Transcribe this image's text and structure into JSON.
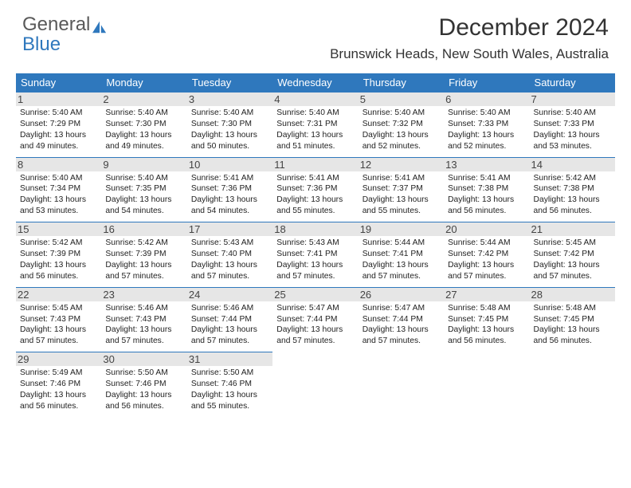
{
  "brand": {
    "part1": "General",
    "part2": "Blue"
  },
  "title": "December 2024",
  "location": "Brunswick Heads, New South Wales, Australia",
  "colors": {
    "header_bg": "#2f78bd",
    "header_text": "#ffffff",
    "daynum_bg": "#e6e6e6",
    "row_border": "#2f78bd",
    "page_bg": "#ffffff",
    "text": "#222222",
    "logo_gray": "#595959",
    "logo_blue": "#2f78bd"
  },
  "typography": {
    "title_fontsize": 30,
    "location_fontsize": 17,
    "dayhead_fontsize": 13,
    "daynum_fontsize": 13,
    "cell_fontsize": 10.3,
    "font_family": "Arial"
  },
  "layout": {
    "columns": 7,
    "rows_of_weeks": 5,
    "cell_lines": 4
  },
  "day_headers": [
    "Sunday",
    "Monday",
    "Tuesday",
    "Wednesday",
    "Thursday",
    "Friday",
    "Saturday"
  ],
  "weeks": [
    [
      {
        "num": "1",
        "l1": "Sunrise: 5:40 AM",
        "l2": "Sunset: 7:29 PM",
        "l3": "Daylight: 13 hours",
        "l4": "and 49 minutes."
      },
      {
        "num": "2",
        "l1": "Sunrise: 5:40 AM",
        "l2": "Sunset: 7:30 PM",
        "l3": "Daylight: 13 hours",
        "l4": "and 49 minutes."
      },
      {
        "num": "3",
        "l1": "Sunrise: 5:40 AM",
        "l2": "Sunset: 7:30 PM",
        "l3": "Daylight: 13 hours",
        "l4": "and 50 minutes."
      },
      {
        "num": "4",
        "l1": "Sunrise: 5:40 AM",
        "l2": "Sunset: 7:31 PM",
        "l3": "Daylight: 13 hours",
        "l4": "and 51 minutes."
      },
      {
        "num": "5",
        "l1": "Sunrise: 5:40 AM",
        "l2": "Sunset: 7:32 PM",
        "l3": "Daylight: 13 hours",
        "l4": "and 52 minutes."
      },
      {
        "num": "6",
        "l1": "Sunrise: 5:40 AM",
        "l2": "Sunset: 7:33 PM",
        "l3": "Daylight: 13 hours",
        "l4": "and 52 minutes."
      },
      {
        "num": "7",
        "l1": "Sunrise: 5:40 AM",
        "l2": "Sunset: 7:33 PM",
        "l3": "Daylight: 13 hours",
        "l4": "and 53 minutes."
      }
    ],
    [
      {
        "num": "8",
        "l1": "Sunrise: 5:40 AM",
        "l2": "Sunset: 7:34 PM",
        "l3": "Daylight: 13 hours",
        "l4": "and 53 minutes."
      },
      {
        "num": "9",
        "l1": "Sunrise: 5:40 AM",
        "l2": "Sunset: 7:35 PM",
        "l3": "Daylight: 13 hours",
        "l4": "and 54 minutes."
      },
      {
        "num": "10",
        "l1": "Sunrise: 5:41 AM",
        "l2": "Sunset: 7:36 PM",
        "l3": "Daylight: 13 hours",
        "l4": "and 54 minutes."
      },
      {
        "num": "11",
        "l1": "Sunrise: 5:41 AM",
        "l2": "Sunset: 7:36 PM",
        "l3": "Daylight: 13 hours",
        "l4": "and 55 minutes."
      },
      {
        "num": "12",
        "l1": "Sunrise: 5:41 AM",
        "l2": "Sunset: 7:37 PM",
        "l3": "Daylight: 13 hours",
        "l4": "and 55 minutes."
      },
      {
        "num": "13",
        "l1": "Sunrise: 5:41 AM",
        "l2": "Sunset: 7:38 PM",
        "l3": "Daylight: 13 hours",
        "l4": "and 56 minutes."
      },
      {
        "num": "14",
        "l1": "Sunrise: 5:42 AM",
        "l2": "Sunset: 7:38 PM",
        "l3": "Daylight: 13 hours",
        "l4": "and 56 minutes."
      }
    ],
    [
      {
        "num": "15",
        "l1": "Sunrise: 5:42 AM",
        "l2": "Sunset: 7:39 PM",
        "l3": "Daylight: 13 hours",
        "l4": "and 56 minutes."
      },
      {
        "num": "16",
        "l1": "Sunrise: 5:42 AM",
        "l2": "Sunset: 7:39 PM",
        "l3": "Daylight: 13 hours",
        "l4": "and 57 minutes."
      },
      {
        "num": "17",
        "l1": "Sunrise: 5:43 AM",
        "l2": "Sunset: 7:40 PM",
        "l3": "Daylight: 13 hours",
        "l4": "and 57 minutes."
      },
      {
        "num": "18",
        "l1": "Sunrise: 5:43 AM",
        "l2": "Sunset: 7:41 PM",
        "l3": "Daylight: 13 hours",
        "l4": "and 57 minutes."
      },
      {
        "num": "19",
        "l1": "Sunrise: 5:44 AM",
        "l2": "Sunset: 7:41 PM",
        "l3": "Daylight: 13 hours",
        "l4": "and 57 minutes."
      },
      {
        "num": "20",
        "l1": "Sunrise: 5:44 AM",
        "l2": "Sunset: 7:42 PM",
        "l3": "Daylight: 13 hours",
        "l4": "and 57 minutes."
      },
      {
        "num": "21",
        "l1": "Sunrise: 5:45 AM",
        "l2": "Sunset: 7:42 PM",
        "l3": "Daylight: 13 hours",
        "l4": "and 57 minutes."
      }
    ],
    [
      {
        "num": "22",
        "l1": "Sunrise: 5:45 AM",
        "l2": "Sunset: 7:43 PM",
        "l3": "Daylight: 13 hours",
        "l4": "and 57 minutes."
      },
      {
        "num": "23",
        "l1": "Sunrise: 5:46 AM",
        "l2": "Sunset: 7:43 PM",
        "l3": "Daylight: 13 hours",
        "l4": "and 57 minutes."
      },
      {
        "num": "24",
        "l1": "Sunrise: 5:46 AM",
        "l2": "Sunset: 7:44 PM",
        "l3": "Daylight: 13 hours",
        "l4": "and 57 minutes."
      },
      {
        "num": "25",
        "l1": "Sunrise: 5:47 AM",
        "l2": "Sunset: 7:44 PM",
        "l3": "Daylight: 13 hours",
        "l4": "and 57 minutes."
      },
      {
        "num": "26",
        "l1": "Sunrise: 5:47 AM",
        "l2": "Sunset: 7:44 PM",
        "l3": "Daylight: 13 hours",
        "l4": "and 57 minutes."
      },
      {
        "num": "27",
        "l1": "Sunrise: 5:48 AM",
        "l2": "Sunset: 7:45 PM",
        "l3": "Daylight: 13 hours",
        "l4": "and 56 minutes."
      },
      {
        "num": "28",
        "l1": "Sunrise: 5:48 AM",
        "l2": "Sunset: 7:45 PM",
        "l3": "Daylight: 13 hours",
        "l4": "and 56 minutes."
      }
    ],
    [
      {
        "num": "29",
        "l1": "Sunrise: 5:49 AM",
        "l2": "Sunset: 7:46 PM",
        "l3": "Daylight: 13 hours",
        "l4": "and 56 minutes."
      },
      {
        "num": "30",
        "l1": "Sunrise: 5:50 AM",
        "l2": "Sunset: 7:46 PM",
        "l3": "Daylight: 13 hours",
        "l4": "and 56 minutes."
      },
      {
        "num": "31",
        "l1": "Sunrise: 5:50 AM",
        "l2": "Sunset: 7:46 PM",
        "l3": "Daylight: 13 hours",
        "l4": "and 55 minutes."
      },
      null,
      null,
      null,
      null
    ]
  ]
}
